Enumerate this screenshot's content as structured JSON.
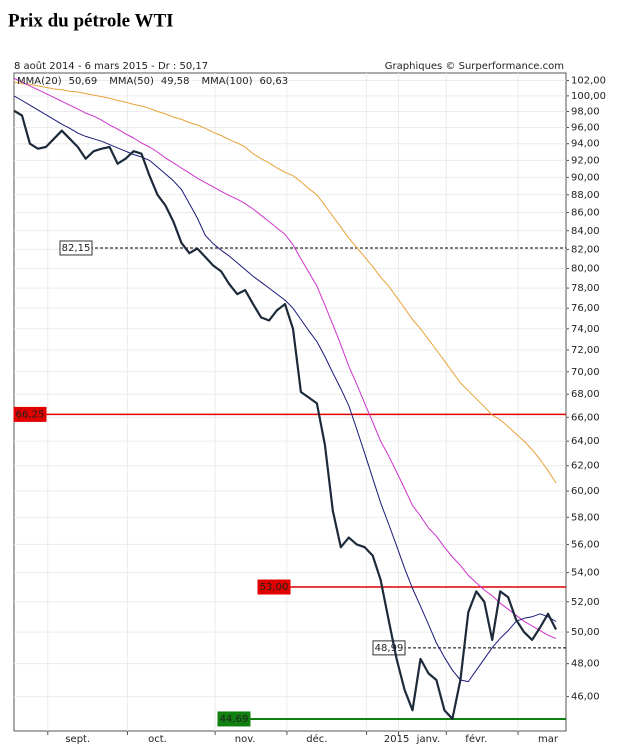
{
  "chart_data": {
    "type": "line",
    "title": "Prix du pétrole WTI",
    "subtitle": "8 août 2014 - 6 mars 2015 - Dr : 50,17",
    "credit": "Graphiques © Surperformance.com",
    "log_scale": true,
    "grid": true,
    "color": "#1c2a3a",
    "categories": [
      null,
      null,
      null,
      null,
      null,
      null,
      null,
      null,
      "sept.",
      null,
      null,
      null,
      null,
      null,
      null,
      null,
      null,
      null,
      "oct.",
      null,
      null,
      null,
      null,
      null,
      null,
      null,
      null,
      null,
      null,
      "nov.",
      null,
      null,
      null,
      null,
      null,
      null,
      null,
      null,
      "déc.",
      null,
      null,
      null,
      null,
      null,
      null,
      null,
      null,
      null,
      "2015",
      null,
      null,
      null,
      "janv.",
      null,
      null,
      null,
      null,
      null,
      "févr.",
      null,
      null,
      null,
      null,
      null,
      null,
      null,
      null,
      "mar",
      null
    ],
    "values": [
      98.1,
      97.5,
      94.0,
      93.4,
      93.6,
      94.6,
      95.6,
      94.6,
      93.6,
      92.2,
      93.1,
      93.4,
      93.6,
      91.6,
      92.2,
      93.1,
      92.8,
      90.2,
      88.0,
      86.8,
      85.0,
      82.7,
      81.6,
      82.1,
      81.2,
      80.3,
      79.7,
      78.4,
      77.4,
      77.8,
      76.4,
      75.1,
      74.8,
      75.8,
      76.4,
      74.0,
      68.2,
      67.7,
      67.2,
      63.7,
      58.5,
      55.8,
      56.5,
      56.0,
      55.8,
      55.2,
      53.5,
      50.8,
      48.3,
      46.4,
      45.2,
      48.3,
      47.4,
      47.0,
      45.2,
      44.7,
      47.0,
      51.3,
      52.7,
      52.0,
      49.5,
      52.7,
      52.3,
      50.8,
      50.0,
      49.5,
      50.3,
      51.2,
      50.17
    ],
    "series": [
      {
        "name": "MMA(20)",
        "color": "#1a1a7a",
        "last_label": "50,69",
        "values": [
          100,
          99.4,
          98.8,
          98.2,
          97.6,
          97.0,
          96.4,
          95.9,
          95.3,
          94.9,
          94.6,
          94.3,
          93.9,
          93.5,
          93.1,
          92.7,
          92.4,
          92.0,
          91.2,
          90.4,
          89.6,
          88.6,
          87.0,
          85.4,
          83.5,
          82.6,
          81.9,
          81.3,
          80.6,
          79.9,
          79.2,
          78.6,
          78.0,
          77.4,
          76.8,
          76.0,
          74.9,
          73.8,
          72.8,
          71.4,
          69.9,
          68.5,
          67.0,
          65.0,
          63.0,
          61.0,
          59.1,
          57.5,
          55.9,
          54.3,
          52.9,
          51.7,
          50.5,
          49.3,
          48.4,
          47.6,
          47.0,
          46.9,
          47.6,
          48.3,
          49.0,
          49.6,
          50.1,
          50.7,
          50.9,
          51.0,
          51.2,
          51.0,
          50.69
        ]
      },
      {
        "name": "MMA(50)",
        "color": "#cc33cc",
        "last_label": "49,58",
        "values": [
          102.3,
          101.8,
          101.3,
          100.8,
          100.3,
          99.8,
          99.3,
          98.8,
          98.3,
          97.8,
          97.4,
          96.9,
          96.3,
          95.8,
          95.2,
          94.7,
          94.1,
          93.6,
          93.0,
          92.3,
          91.7,
          91.1,
          90.5,
          89.9,
          89.4,
          88.9,
          88.4,
          87.9,
          87.5,
          87.0,
          86.4,
          85.7,
          85.0,
          84.3,
          83.6,
          82.5,
          81.0,
          79.6,
          78.2,
          76.3,
          74.4,
          72.5,
          70.5,
          68.9,
          67.2,
          65.6,
          64.0,
          62.8,
          61.5,
          60.2,
          58.9,
          58.1,
          57.2,
          56.6,
          55.8,
          55.1,
          54.5,
          53.8,
          53.3,
          52.8,
          52.4,
          51.9,
          51.5,
          51.1,
          50.7,
          50.4,
          50.1,
          49.8,
          49.58
        ]
      },
      {
        "name": "MMA(100)",
        "color": "#e8a33a",
        "last_label": "60,63",
        "values": [
          101.8,
          101.6,
          101.5,
          101.3,
          101.1,
          100.9,
          100.8,
          100.6,
          100.5,
          100.3,
          100.1,
          99.9,
          99.7,
          99.4,
          99.2,
          98.9,
          98.7,
          98.4,
          98.0,
          97.7,
          97.3,
          97.0,
          96.6,
          96.3,
          95.9,
          95.4,
          95.0,
          94.5,
          94.1,
          93.6,
          92.8,
          92.2,
          91.7,
          91.1,
          90.6,
          90.2,
          89.5,
          88.7,
          88.0,
          86.8,
          85.6,
          84.4,
          83.2,
          82.2,
          81.2,
          80.2,
          79.1,
          78.2,
          77.1,
          76.0,
          74.9,
          74.0,
          73.0,
          72.0,
          71.0,
          70.0,
          69.0,
          68.3,
          67.6,
          66.9,
          66.2,
          65.8,
          65.2,
          64.6,
          64.0,
          63.3,
          62.5,
          61.6,
          60.63
        ]
      }
    ],
    "reference_lines": [
      {
        "value": 82.15,
        "label": "82,15",
        "color": "#000000",
        "style": "dashed"
      },
      {
        "value": 66.25,
        "label": "66,25",
        "color": "#e00000",
        "style": "solid"
      },
      {
        "value": 53.0,
        "label": "53,00",
        "color": "#e00000",
        "style": "solid"
      },
      {
        "value": 48.99,
        "label": "48,99",
        "color": "#000000",
        "style": "dashed"
      },
      {
        "value": 44.69,
        "label": "44,69",
        "color": "#108010",
        "style": "solid"
      }
    ],
    "ylim": [
      44,
      103
    ],
    "yticks": [
      {
        "value": 46,
        "label": "46,00"
      },
      {
        "value": 48,
        "label": "48,00"
      },
      {
        "value": 50,
        "label": "50,00"
      },
      {
        "value": 52,
        "label": "52,00"
      },
      {
        "value": 54,
        "label": "54,00"
      },
      {
        "value": 56,
        "label": "56,00"
      },
      {
        "value": 58,
        "label": "58,00"
      },
      {
        "value": 60,
        "label": "60,00"
      },
      {
        "value": 62,
        "label": "62,00"
      },
      {
        "value": 64,
        "label": "64,00"
      },
      {
        "value": 66,
        "label": "66,00"
      },
      {
        "value": 68,
        "label": "68,00"
      },
      {
        "value": 70,
        "label": "70,00"
      },
      {
        "value": 72,
        "label": "72,00"
      },
      {
        "value": 74,
        "label": "74,00"
      },
      {
        "value": 76,
        "label": "76,00"
      },
      {
        "value": 78,
        "label": "78,00"
      },
      {
        "value": 80,
        "label": "80,00"
      },
      {
        "value": 82,
        "label": "82,00"
      },
      {
        "value": 84,
        "label": "84,00"
      },
      {
        "value": 86,
        "label": "86,00"
      },
      {
        "value": 88,
        "label": "88,00"
      },
      {
        "value": 90,
        "label": "90,00"
      },
      {
        "value": 92,
        "label": "92,00"
      },
      {
        "value": 94,
        "label": "94,00"
      },
      {
        "value": 96,
        "label": "96,00"
      },
      {
        "value": 98,
        "label": "98,00"
      },
      {
        "value": 100,
        "label": "100,00"
      },
      {
        "value": 102,
        "label": "102,00"
      }
    ]
  }
}
